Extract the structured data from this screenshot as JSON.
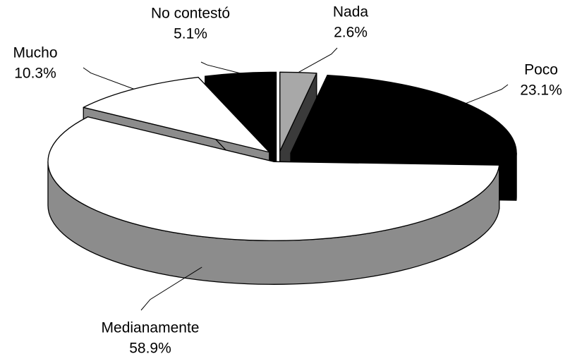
{
  "chart_data": {
    "type": "pie",
    "categories": [
      "Nada",
      "Poco",
      "Medianamente",
      "Mucho",
      "No contestó"
    ],
    "values": [
      2.6,
      23.1,
      58.9,
      10.3,
      5.1
    ],
    "value_labels": [
      "2.6%",
      "23.1%",
      "58.9%",
      "10.3%",
      "5.1%"
    ],
    "colors": [
      "#a8a8a8",
      "#000000",
      "#ffffff",
      "#ffffff",
      "#000000"
    ],
    "side_colors": [
      "#3a3a3a",
      "#000000",
      "#8c8c8c",
      "#8c8c8c",
      "#000000"
    ]
  }
}
